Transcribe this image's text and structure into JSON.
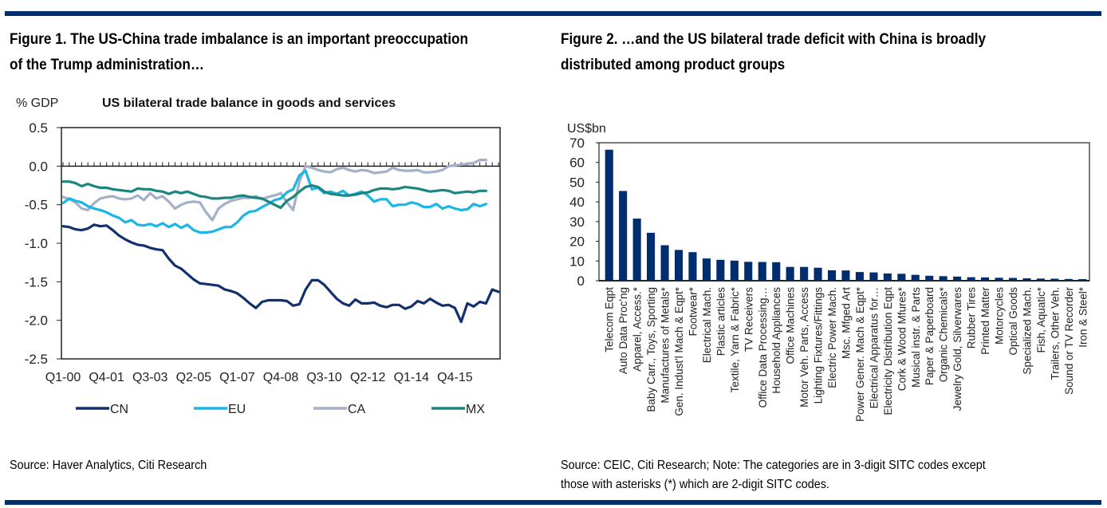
{
  "figure1": {
    "title_line1": "Figure 1. The US-China trade imbalance is an important preoccupation",
    "title_line2": "of the Trump administration…",
    "source": "Source: Haver Analytics,  Citi Research"
  },
  "figure2": {
    "title_line1": "Figure 2. …and the US bilateral trade deficit with China is broadly",
    "title_line2": "distributed among product groups",
    "source_line1": "Source: CEIC, Citi Research; Note: The categories are in 3-digit SITC codes except",
    "source_line2": "those with asterisks (*) which are 2-digit SITC codes."
  },
  "colors": {
    "rule": "#002d6e",
    "CN": "#12306e",
    "EU": "#1ab6e4",
    "CA": "#a3b0c8",
    "MX": "#1b8580",
    "bar": "#002d6e"
  },
  "chart_data": [
    {
      "type": "line",
      "title": "US bilateral trade balance in goods and services",
      "ylabel": "% GDP",
      "xlabel": "",
      "ylim": [
        -2.5,
        0.5
      ],
      "yticks": [
        "0.5",
        "0.0",
        "-0.5",
        "-1.0",
        "-1.5",
        "-2.0",
        "-2.5"
      ],
      "ytick_values": [
        0.5,
        0.0,
        -0.5,
        -1.0,
        -1.5,
        -2.0,
        -2.5
      ],
      "xtick_labels": [
        "Q1-00",
        "Q4-01",
        "Q3-03",
        "Q2-05",
        "Q1-07",
        "Q4-08",
        "Q3-10",
        "Q2-12",
        "Q1-14",
        "Q4-15"
      ],
      "xtick_every": 7,
      "x_start": "Q1-00",
      "grid": false,
      "legend_position": "bottom",
      "series": [
        {
          "name": "CN",
          "values": [
            -0.78,
            -0.79,
            -0.82,
            -0.83,
            -0.81,
            -0.76,
            -0.78,
            -0.77,
            -0.83,
            -0.9,
            -0.95,
            -0.99,
            -1.02,
            -1.03,
            -1.06,
            -1.08,
            -1.09,
            -1.2,
            -1.29,
            -1.33,
            -1.4,
            -1.47,
            -1.52,
            -1.53,
            -1.54,
            -1.55,
            -1.6,
            -1.62,
            -1.65,
            -1.71,
            -1.78,
            -1.84,
            -1.76,
            -1.74,
            -1.74,
            -1.74,
            -1.75,
            -1.81,
            -1.79,
            -1.6,
            -1.48,
            -1.48,
            -1.54,
            -1.63,
            -1.72,
            -1.78,
            -1.81,
            -1.73,
            -1.78,
            -1.78,
            -1.77,
            -1.81,
            -1.83,
            -1.8,
            -1.8,
            -1.85,
            -1.82,
            -1.75,
            -1.78,
            -1.72,
            -1.77,
            -1.81,
            -1.8,
            -1.84,
            -2.02,
            -1.78,
            -1.82,
            -1.76,
            -1.78,
            -1.6,
            -1.63
          ]
        },
        {
          "name": "EU",
          "values": [
            -0.48,
            -0.42,
            -0.45,
            -0.47,
            -0.52,
            -0.55,
            -0.57,
            -0.6,
            -0.64,
            -0.67,
            -0.73,
            -0.7,
            -0.76,
            -0.77,
            -0.75,
            -0.78,
            -0.74,
            -0.79,
            -0.75,
            -0.8,
            -0.76,
            -0.83,
            -0.86,
            -0.86,
            -0.85,
            -0.82,
            -0.79,
            -0.79,
            -0.73,
            -0.64,
            -0.59,
            -0.58,
            -0.53,
            -0.49,
            -0.44,
            -0.42,
            -0.34,
            -0.3,
            -0.12,
            -0.06,
            -0.3,
            -0.28,
            -0.35,
            -0.33,
            -0.36,
            -0.32,
            -0.38,
            -0.36,
            -0.33,
            -0.38,
            -0.46,
            -0.43,
            -0.43,
            -0.52,
            -0.5,
            -0.5,
            -0.47,
            -0.49,
            -0.53,
            -0.53,
            -0.49,
            -0.55,
            -0.52,
            -0.55,
            -0.57,
            -0.56,
            -0.49,
            -0.52,
            -0.49
          ]
        },
        {
          "name": "CA",
          "values": [
            -0.4,
            -0.43,
            -0.47,
            -0.55,
            -0.57,
            -0.48,
            -0.42,
            -0.4,
            -0.39,
            -0.42,
            -0.43,
            -0.42,
            -0.38,
            -0.44,
            -0.35,
            -0.42,
            -0.39,
            -0.46,
            -0.55,
            -0.5,
            -0.47,
            -0.46,
            -0.47,
            -0.6,
            -0.7,
            -0.55,
            -0.49,
            -0.45,
            -0.43,
            -0.41,
            -0.41,
            -0.39,
            -0.43,
            -0.4,
            -0.38,
            -0.35,
            -0.47,
            -0.57,
            -0.2,
            0.0,
            -0.02,
            -0.05,
            -0.07,
            -0.08,
            -0.04,
            -0.02,
            -0.05,
            -0.07,
            -0.05,
            -0.06,
            -0.09,
            -0.08,
            -0.07,
            -0.02,
            -0.05,
            -0.06,
            -0.06,
            -0.05,
            -0.08,
            -0.08,
            -0.07,
            -0.05,
            0.0,
            0.01,
            0.02,
            0.03,
            0.04,
            0.08,
            0.08
          ]
        },
        {
          "name": "MX",
          "values": [
            -0.2,
            -0.2,
            -0.22,
            -0.26,
            -0.23,
            -0.26,
            -0.28,
            -0.28,
            -0.3,
            -0.31,
            -0.32,
            -0.33,
            -0.29,
            -0.3,
            -0.3,
            -0.32,
            -0.33,
            -0.36,
            -0.33,
            -0.35,
            -0.33,
            -0.36,
            -0.39,
            -0.4,
            -0.42,
            -0.42,
            -0.41,
            -0.41,
            -0.39,
            -0.38,
            -0.4,
            -0.41,
            -0.42,
            -0.46,
            -0.5,
            -0.54,
            -0.45,
            -0.4,
            -0.33,
            -0.27,
            -0.25,
            -0.27,
            -0.33,
            -0.36,
            -0.37,
            -0.38,
            -0.38,
            -0.37,
            -0.35,
            -0.34,
            -0.31,
            -0.29,
            -0.29,
            -0.3,
            -0.29,
            -0.27,
            -0.28,
            -0.29,
            -0.31,
            -0.33,
            -0.32,
            -0.31,
            -0.32,
            -0.35,
            -0.34,
            -0.33,
            -0.34,
            -0.32,
            -0.32
          ]
        }
      ]
    },
    {
      "type": "bar",
      "title": "",
      "ylabel": "US$bn",
      "xlabel": "",
      "ylim": [
        0,
        70
      ],
      "yticks": [
        "70",
        "60",
        "50",
        "40",
        "30",
        "20",
        "10",
        "0"
      ],
      "ytick_values": [
        70,
        60,
        50,
        40,
        30,
        20,
        10,
        0
      ],
      "grid": false,
      "categories": [
        "Telecom Eqpt",
        "Auto Data Proc'ng",
        "Apparel, Access.*",
        "Baby Carr., Toys, Sporting",
        "Manufactures of Metals*",
        "Gen. Indust'l Mach & Eqpt*",
        "Footwear*",
        "Electrical Mach.",
        "Plastic articles",
        "Textile, Yarn & Fabric*",
        "TV Receivers",
        "Office Data Processing…",
        "Household Appliances",
        "Office Machines",
        "Motor Veh. Parts, Access",
        "Lighting Fixtures/Fittings",
        "Electric Power Mach.",
        "Msc. Mfged Art",
        "Power Gener. Mach & Eqpt*",
        "Electrical Apparatus for…",
        "Electricity Distribution Eqpt",
        "Cork & Wood Mfures*",
        "Musical instr. & Parts",
        "Paper & Paperboard",
        "Organic Chemicals*",
        "Jewelry Gold, Silverwares",
        "Rubber Tires",
        "Printed Matter",
        "Motorcycles",
        "Optical Goods",
        "Specialized Mach.",
        "Fish, Aquatic*",
        "Trailers, Other Veh.",
        "Sound or TV Recorder",
        "Iron & Steel*"
      ],
      "values": [
        66.5,
        45.5,
        31.5,
        24.3,
        18.0,
        15.6,
        14.5,
        11.3,
        10.6,
        10.2,
        9.6,
        9.5,
        9.4,
        7.0,
        7.0,
        6.6,
        5.3,
        5.2,
        4.4,
        4.2,
        3.7,
        3.5,
        3.0,
        2.5,
        2.3,
        2.1,
        1.8,
        1.7,
        1.5,
        1.4,
        1.2,
        1.1,
        1.0,
        0.9,
        0.8
      ]
    }
  ]
}
